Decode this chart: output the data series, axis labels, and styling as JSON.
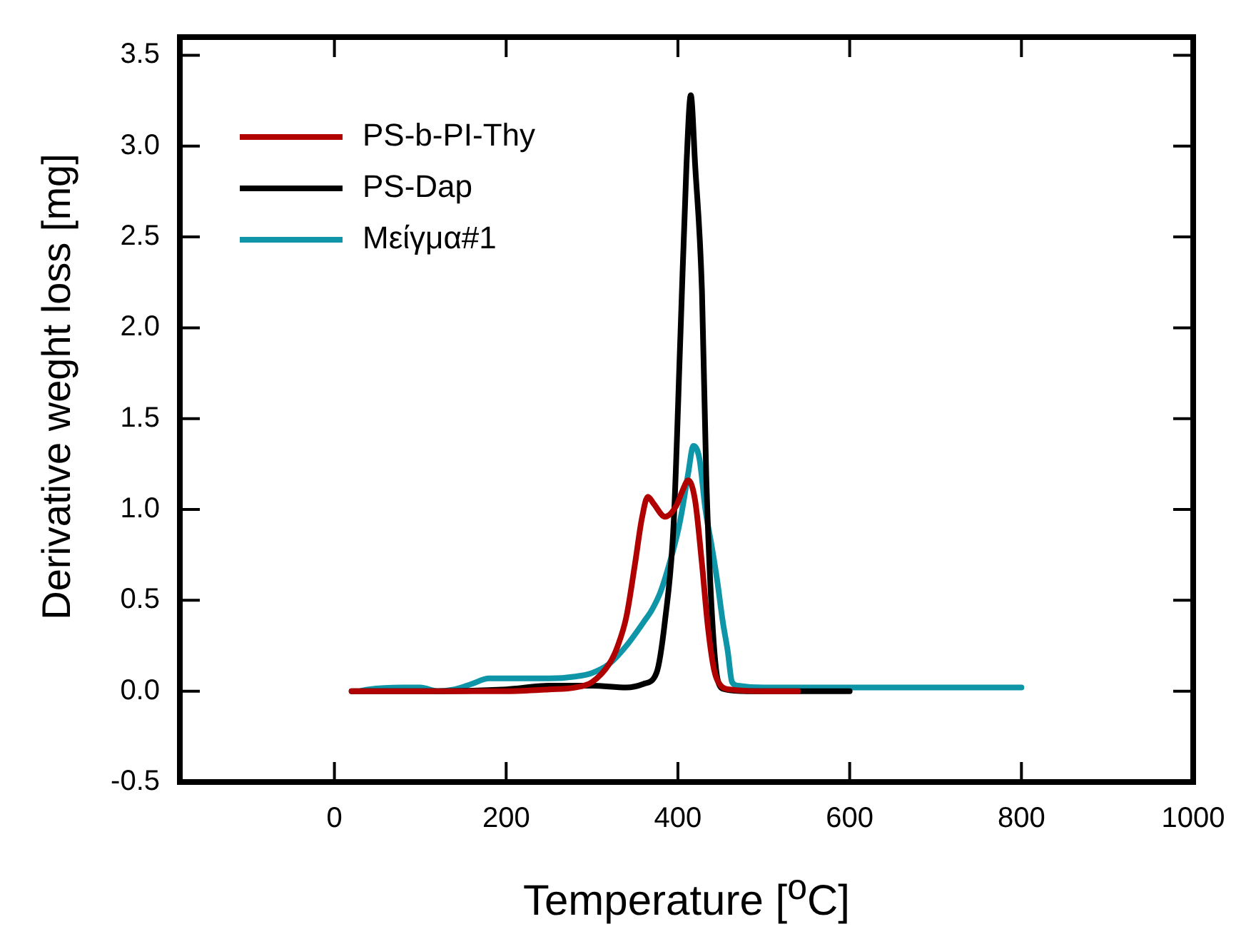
{
  "chart_data": {
    "type": "line",
    "xlabel": "Temperature [$^{o}$C]",
    "ylabel": "Derivative weght loss [mg]",
    "xlim": [
      -180,
      1000
    ],
    "ylim": [
      -0.5,
      3.6
    ],
    "xticks": [
      0,
      200,
      400,
      600,
      800,
      1000
    ],
    "yticks": [
      {
        "value": -0.5,
        "label": "-0.5"
      },
      {
        "value": 0,
        "label": "0.0"
      },
      {
        "value": 0.5,
        "label": "0.5"
      },
      {
        "value": 1,
        "label": "1.0"
      },
      {
        "value": 1.5,
        "label": "1.5"
      },
      {
        "value": 2,
        "label": "2.0"
      },
      {
        "value": 2.5,
        "label": "2.5"
      },
      {
        "value": 3,
        "label": "3.0"
      },
      {
        "value": 3.5,
        "label": "3.5"
      }
    ],
    "grid": false,
    "legend": "top left",
    "marker": "none",
    "line_style": "solid",
    "series": [
      {
        "name": "PS-b-PI-Thy",
        "color": "#b00000",
        "x": [
          20,
          100,
          200,
          250,
          280,
          300,
          320,
          330,
          340,
          350,
          358,
          365,
          372,
          385,
          398,
          405,
          412,
          420,
          428,
          435,
          442,
          450,
          460,
          500,
          540
        ],
        "values": [
          0,
          0,
          0,
          0.01,
          0.02,
          0.05,
          0.15,
          0.25,
          0.41,
          0.7,
          0.95,
          1.07,
          1.03,
          0.96,
          1.02,
          1.1,
          1.16,
          1.05,
          0.7,
          0.35,
          0.12,
          0.03,
          0.01,
          0,
          0
        ]
      },
      {
        "name": "PS-Dap",
        "color": "#000000",
        "x": [
          20,
          100,
          200,
          250,
          300,
          340,
          360,
          375,
          385,
          395,
          403,
          410,
          415,
          420,
          428,
          433,
          440,
          447,
          455,
          480,
          600
        ],
        "values": [
          0,
          0,
          0.01,
          0.03,
          0.03,
          0.02,
          0.04,
          0.1,
          0.39,
          0.92,
          1.97,
          2.9,
          3.28,
          2.9,
          2.2,
          1.18,
          0.39,
          0.05,
          0.01,
          0,
          0
        ]
      },
      {
        "name": "Μείγμα#1",
        "color": "#0e95a8",
        "x": [
          30,
          40,
          80,
          100,
          120,
          140,
          160,
          180,
          200,
          250,
          280,
          300,
          320,
          340,
          360,
          370,
          380,
          390,
          400,
          405,
          412,
          418,
          425,
          432,
          440,
          446,
          452,
          458,
          463,
          470,
          500,
          600,
          700,
          800
        ],
        "values": [
          0,
          0.01,
          0.02,
          0.02,
          0.0,
          0.01,
          0.04,
          0.07,
          0.07,
          0.07,
          0.08,
          0.1,
          0.15,
          0.25,
          0.38,
          0.45,
          0.55,
          0.7,
          0.88,
          1.0,
          1.2,
          1.35,
          1.28,
          1.0,
          0.78,
          0.6,
          0.39,
          0.22,
          0.05,
          0.03,
          0.02,
          0.02,
          0.02,
          0.02
        ]
      }
    ]
  }
}
